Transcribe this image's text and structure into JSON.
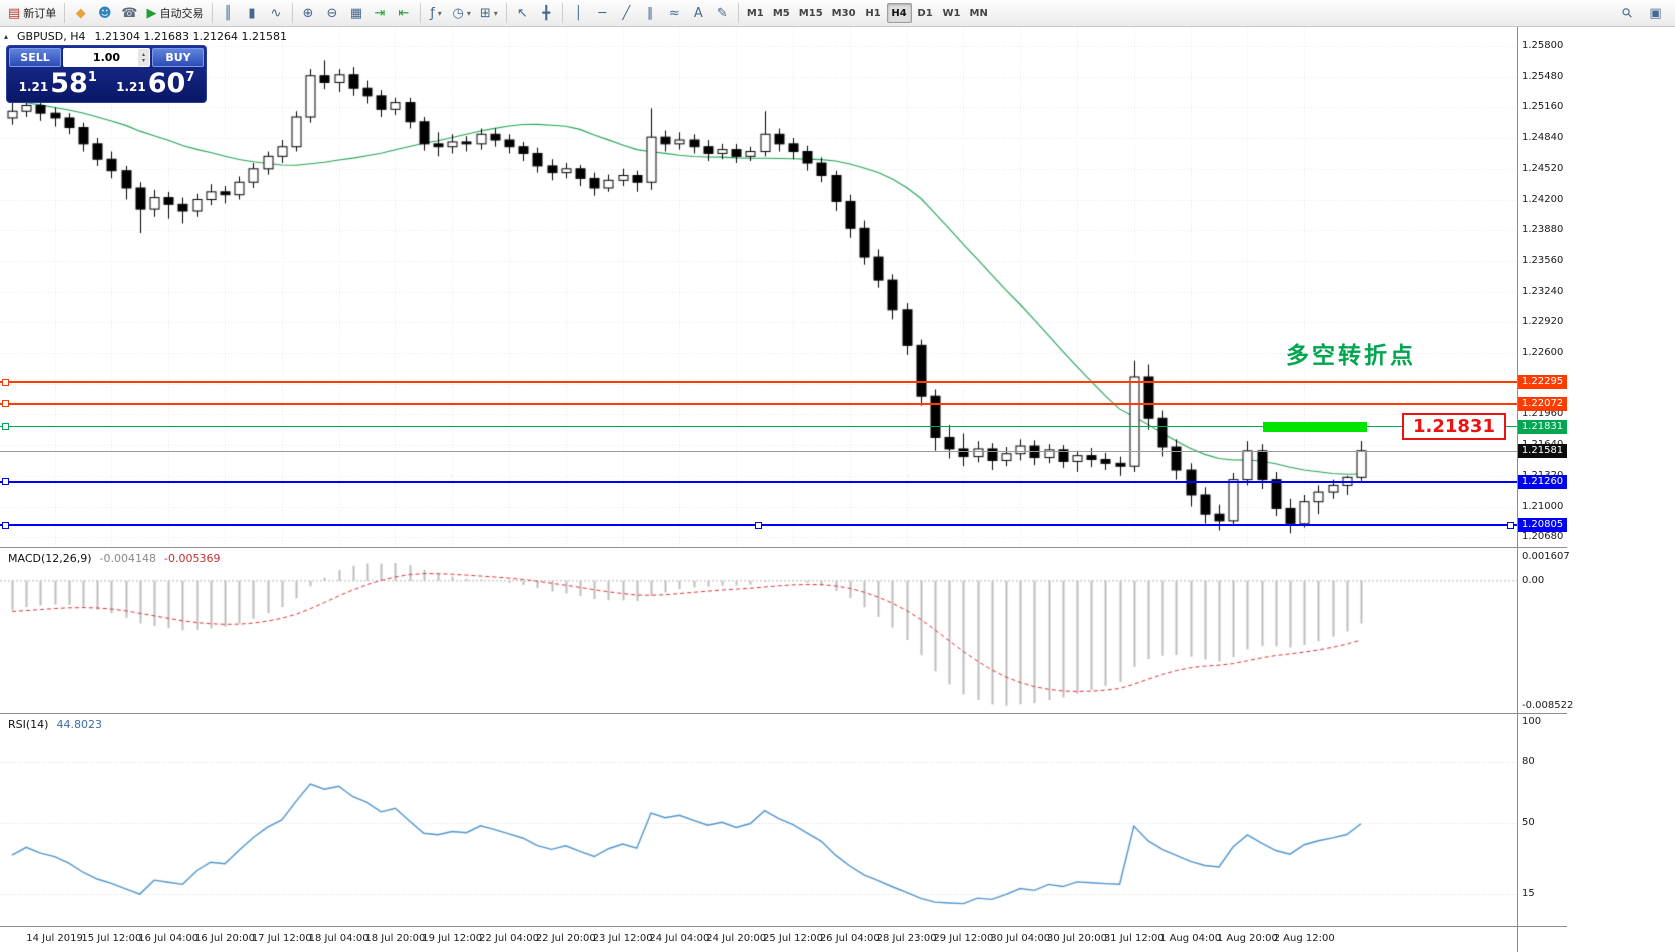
{
  "toolbar": {
    "groups": [
      {
        "items": [
          {
            "name": "new-order-button",
            "icon_name": "new-order-icon",
            "glyph": "▤",
            "glyph_color": "#b03a2e",
            "label": "新订单"
          }
        ]
      },
      {
        "items": [
          {
            "name": "mql5-market-icon",
            "glyph": "◆",
            "glyph_color": "#e8a33d"
          },
          {
            "name": "community-icon",
            "glyph": "☻",
            "glyph_color": "#2e86c1"
          },
          {
            "name": "support-icon",
            "glyph": "☎",
            "glyph_color": "#5d6d7e"
          },
          {
            "name": "auto-trading-button",
            "icon_name": "auto-trading-play-icon",
            "glyph": "▶",
            "glyph_color": "#1e9e33",
            "label": "自动交易"
          }
        ]
      },
      {
        "items": [
          {
            "name": "chart-bars-icon",
            "glyph": "║"
          },
          {
            "name": "chart-candles-icon",
            "glyph": "▮"
          },
          {
            "name": "chart-line-icon",
            "glyph": "∿"
          }
        ]
      },
      {
        "items": [
          {
            "name": "zoom-in-icon",
            "glyph": "⊕"
          },
          {
            "name": "zoom-out-icon",
            "glyph": "⊖"
          },
          {
            "name": "tile-windows-icon",
            "glyph": "▦"
          },
          {
            "name": "auto-scroll-icon",
            "glyph": "⇥",
            "glyph_color": "#1e9e33"
          },
          {
            "name": "chart-shift-icon",
            "glyph": "⇤",
            "glyph_color": "#1e9e33"
          }
        ]
      },
      {
        "items": [
          {
            "name": "indicators-icon",
            "glyph": "ƒ",
            "dropdown": true
          },
          {
            "name": "periods-icon",
            "glyph": "◷",
            "dropdown": true
          },
          {
            "name": "templates-icon",
            "glyph": "⊞",
            "dropdown": true
          }
        ]
      },
      {
        "items": [
          {
            "name": "cursor-icon",
            "glyph": "↖"
          },
          {
            "name": "crosshair-icon",
            "glyph": "╋"
          }
        ]
      },
      {
        "items": [
          {
            "name": "vline-tool-icon",
            "glyph": "│"
          },
          {
            "name": "hline-tool-icon",
            "glyph": "─"
          },
          {
            "name": "trendline-tool-icon",
            "glyph": "╱"
          },
          {
            "name": "channel-tool-icon",
            "glyph": "∥"
          },
          {
            "name": "cycle-tool-icon",
            "glyph": "≈"
          },
          {
            "name": "text-tool-icon",
            "glyph": "A"
          },
          {
            "name": "draw-tool-icon",
            "glyph": "✎"
          }
        ]
      }
    ],
    "timeframes": [
      "M1",
      "M5",
      "M15",
      "M30",
      "H1",
      "H4",
      "D1",
      "W1",
      "MN"
    ],
    "active_timeframe": "H4",
    "right_items": [
      {
        "name": "search-icon",
        "glyph": "⚲"
      },
      {
        "name": "layout-icon",
        "glyph": "▣"
      }
    ]
  },
  "chart": {
    "symbol": "GBPUSD, H4",
    "ohlc": "1.21304 1.21683 1.21264 1.21581",
    "collapse_arrow": "▴",
    "trade_panel": {
      "sell_label": "SELL",
      "buy_label": "BUY",
      "volume": "1.00",
      "sell_price": {
        "prefix": "1.21",
        "big": "58",
        "sup": "1"
      },
      "buy_price": {
        "prefix": "1.21",
        "big": "60",
        "sup": "7"
      }
    },
    "annotation": {
      "text": "多空转折点",
      "color": "#00a64f"
    },
    "price_flag": {
      "text": "1.21831",
      "color": "#ee1111"
    },
    "current_price": {
      "text": "1.21581",
      "value": 1.21581
    }
  },
  "price_axis": {
    "ticks": [
      "1.25800",
      "1.25480",
      "1.25160",
      "1.24840",
      "1.24520",
      "1.24200",
      "1.23880",
      "1.23560",
      "1.23240",
      "1.22920",
      "1.22600",
      "1.22280",
      "1.21960",
      "1.21640",
      "1.21320",
      "1.21000",
      "1.20680"
    ]
  },
  "time_axis": {
    "labels": [
      "14 Jul 2019",
      "15 Jul 12:00",
      "16 Jul 04:00",
      "16 Jul 20:00",
      "17 Jul 12:00",
      "18 Jul 04:00",
      "18 Jul 20:00",
      "19 Jul 12:00",
      "22 Jul 04:00",
      "22 Jul 20:00",
      "23 Jul 12:00",
      "24 Jul 04:00",
      "24 Jul 20:00",
      "25 Jul 12:00",
      "26 Jul 04:00",
      "28 Jul 23:00",
      "29 Jul 12:00",
      "30 Jul 04:00",
      "30 Jul 20:00",
      "31 Jul 12:00",
      "1 Aug 04:00",
      "1 Aug 20:00",
      "2 Aug 12:00"
    ]
  },
  "macd_panel": {
    "name": "MACD(12,26,9)",
    "value": "-0.004148",
    "signal_value": "-0.005369",
    "axis": {
      "top": "0.001607",
      "zero": "0.00",
      "bottom": "-0.008522"
    }
  },
  "rsi_panel": {
    "name": "RSI(14)",
    "value": "44.8023",
    "level_labels": [
      "100",
      "80",
      "50",
      "15"
    ],
    "level_values": [
      100,
      80,
      50,
      15
    ]
  },
  "chart_data": {
    "type": "candlestick",
    "symbol": "GBPUSD",
    "timeframe": "H4",
    "ohlc_display": {
      "open": "1.21304",
      "high": "1.21683",
      "low": "1.21264",
      "close": "1.21581"
    },
    "ylim": [
      1.2056,
      1.26
    ],
    "warmup_closes": [
      1.26,
      1.2592,
      1.2585,
      1.259,
      1.2578,
      1.257,
      1.2575,
      1.2562,
      1.2555,
      1.256,
      1.2548,
      1.254,
      1.2545,
      1.2532,
      1.2525,
      1.253,
      1.2518,
      1.251,
      1.2515,
      1.2502,
      1.2495,
      1.25,
      1.2508,
      1.2498,
      1.2502,
      1.2505
    ],
    "candles_ohlc": [
      [
        1.2505,
        1.2522,
        1.2498,
        1.2512
      ],
      [
        1.2512,
        1.2525,
        1.2506,
        1.2518
      ],
      [
        1.2518,
        1.2524,
        1.2502,
        1.251
      ],
      [
        1.251,
        1.2516,
        1.2496,
        1.2505
      ],
      [
        1.2505,
        1.251,
        1.2488,
        1.2495
      ],
      [
        1.2495,
        1.25,
        1.247,
        1.2478
      ],
      [
        1.2478,
        1.2484,
        1.2455,
        1.2462
      ],
      [
        1.2462,
        1.247,
        1.2442,
        1.245
      ],
      [
        1.245,
        1.2455,
        1.242,
        1.2432
      ],
      [
        1.2432,
        1.2438,
        1.2385,
        1.241
      ],
      [
        1.241,
        1.243,
        1.2402,
        1.2422
      ],
      [
        1.2422,
        1.2428,
        1.24,
        1.2415
      ],
      [
        1.2415,
        1.2422,
        1.2395,
        1.2408
      ],
      [
        1.2408,
        1.2426,
        1.2402,
        1.242
      ],
      [
        1.242,
        1.2436,
        1.2414,
        1.2428
      ],
      [
        1.2428,
        1.2434,
        1.2416,
        1.2425
      ],
      [
        1.2425,
        1.2444,
        1.242,
        1.2438
      ],
      [
        1.2438,
        1.2458,
        1.2432,
        1.2452
      ],
      [
        1.2452,
        1.247,
        1.2446,
        1.2465
      ],
      [
        1.2465,
        1.2482,
        1.2458,
        1.2475
      ],
      [
        1.2475,
        1.2512,
        1.247,
        1.2506
      ],
      [
        1.2506,
        1.2556,
        1.25,
        1.2549
      ],
      [
        1.2549,
        1.2565,
        1.2535,
        1.2542
      ],
      [
        1.2542,
        1.2556,
        1.2532,
        1.255
      ],
      [
        1.255,
        1.2558,
        1.2528,
        1.2536
      ],
      [
        1.2536,
        1.2544,
        1.252,
        1.2528
      ],
      [
        1.2528,
        1.2534,
        1.2506,
        1.2514
      ],
      [
        1.2514,
        1.2526,
        1.2508,
        1.2521
      ],
      [
        1.2521,
        1.2526,
        1.2494,
        1.2501
      ],
      [
        1.2501,
        1.2506,
        1.2471,
        1.2478
      ],
      [
        1.2478,
        1.249,
        1.2465,
        1.2475
      ],
      [
        1.2475,
        1.2488,
        1.2468,
        1.248
      ],
      [
        1.248,
        1.2486,
        1.247,
        1.2478
      ],
      [
        1.2478,
        1.2494,
        1.2472,
        1.2488
      ],
      [
        1.2488,
        1.2494,
        1.2475,
        1.2482
      ],
      [
        1.2482,
        1.2488,
        1.2468,
        1.2475
      ],
      [
        1.2475,
        1.248,
        1.246,
        1.2468
      ],
      [
        1.2468,
        1.2474,
        1.2448,
        1.2455
      ],
      [
        1.2455,
        1.2462,
        1.244,
        1.2448
      ],
      [
        1.2448,
        1.2458,
        1.2442,
        1.2452
      ],
      [
        1.2452,
        1.2456,
        1.2434,
        1.2442
      ],
      [
        1.2442,
        1.2448,
        1.2424,
        1.2432
      ],
      [
        1.2432,
        1.2446,
        1.2428,
        1.244
      ],
      [
        1.244,
        1.2452,
        1.2434,
        1.2445
      ],
      [
        1.2445,
        1.245,
        1.2428,
        1.2438
      ],
      [
        1.2438,
        1.2515,
        1.243,
        1.2485
      ],
      [
        1.2485,
        1.2492,
        1.247,
        1.2478
      ],
      [
        1.2478,
        1.249,
        1.2472,
        1.2482
      ],
      [
        1.2482,
        1.2488,
        1.2468,
        1.2475
      ],
      [
        1.2475,
        1.2482,
        1.246,
        1.2468
      ],
      [
        1.2468,
        1.2478,
        1.2462,
        1.2472
      ],
      [
        1.2472,
        1.2478,
        1.2458,
        1.2465
      ],
      [
        1.2465,
        1.2475,
        1.246,
        1.247
      ],
      [
        1.247,
        1.2512,
        1.2465,
        1.2488
      ],
      [
        1.2488,
        1.2494,
        1.247,
        1.2478
      ],
      [
        1.2478,
        1.2484,
        1.2462,
        1.247
      ],
      [
        1.247,
        1.2476,
        1.245,
        1.2458
      ],
      [
        1.2458,
        1.2464,
        1.2438,
        1.2445
      ],
      [
        1.2445,
        1.245,
        1.2408,
        1.2418
      ],
      [
        1.2418,
        1.2425,
        1.238,
        1.239
      ],
      [
        1.239,
        1.2398,
        1.2352,
        1.236
      ],
      [
        1.236,
        1.2368,
        1.2328,
        1.2336
      ],
      [
        1.2336,
        1.2342,
        1.2295,
        1.2305
      ],
      [
        1.2305,
        1.2312,
        1.2258,
        1.2268
      ],
      [
        1.2268,
        1.2274,
        1.2205,
        1.2215
      ],
      [
        1.2215,
        1.2222,
        1.2158,
        1.2172
      ],
      [
        1.2172,
        1.2185,
        1.215,
        1.216
      ],
      [
        1.216,
        1.2176,
        1.2142,
        1.2152
      ],
      [
        1.2152,
        1.2168,
        1.2146,
        1.216
      ],
      [
        1.216,
        1.2166,
        1.2138,
        1.2148
      ],
      [
        1.2148,
        1.2162,
        1.2142,
        1.2155
      ],
      [
        1.2155,
        1.217,
        1.2148,
        1.2163
      ],
      [
        1.2163,
        1.2169,
        1.2143,
        1.2151
      ],
      [
        1.2151,
        1.2165,
        1.2145,
        1.2159
      ],
      [
        1.2159,
        1.2164,
        1.214,
        1.2147
      ],
      [
        1.2147,
        1.2158,
        1.2136,
        1.2153
      ],
      [
        1.2153,
        1.2161,
        1.2141,
        1.2149
      ],
      [
        1.2149,
        1.2156,
        1.2138,
        1.2145
      ],
      [
        1.2145,
        1.2152,
        1.2132,
        1.2142
      ],
      [
        1.2142,
        1.2252,
        1.2136,
        1.2235
      ],
      [
        1.2235,
        1.2248,
        1.218,
        1.2192
      ],
      [
        1.2192,
        1.22,
        1.2152,
        1.2162
      ],
      [
        1.2162,
        1.217,
        1.2128,
        1.2138
      ],
      [
        1.2138,
        1.2145,
        1.21,
        1.2112
      ],
      [
        1.2112,
        1.212,
        1.2082,
        1.2092
      ],
      [
        1.2092,
        1.2102,
        1.2075,
        1.2085
      ],
      [
        1.2085,
        1.2135,
        1.208,
        1.2128
      ],
      [
        1.2128,
        1.2168,
        1.2122,
        1.2158
      ],
      [
        1.2158,
        1.2165,
        1.2118,
        1.2128
      ],
      [
        1.2128,
        1.2136,
        1.209,
        1.2098
      ],
      [
        1.2098,
        1.2108,
        1.2072,
        1.2082
      ],
      [
        1.2082,
        1.2112,
        1.2078,
        1.2105
      ],
      [
        1.2105,
        1.2122,
        1.2092,
        1.2115
      ],
      [
        1.2115,
        1.2128,
        1.2108,
        1.2122
      ],
      [
        1.2122,
        1.2132,
        1.2112,
        1.21304
      ],
      [
        1.21304,
        1.21683,
        1.21264,
        1.21581
      ]
    ],
    "hlines": [
      {
        "price": 1.22295,
        "label": "1.22295",
        "color": "#ff3c00",
        "thickness": 2,
        "handles": [
          "left"
        ]
      },
      {
        "price": 1.22072,
        "label": "1.22072",
        "color": "#ff3c00",
        "thickness": 2,
        "handles": [
          "left"
        ]
      },
      {
        "price": 1.21831,
        "label": "1.21831",
        "color": "#00a651",
        "thickness": 1,
        "handles": [
          "left"
        ]
      },
      {
        "price": 1.2126,
        "label": "1.21260",
        "color": "#0000f0",
        "thickness": 2,
        "handles": [
          "left"
        ]
      },
      {
        "price": 1.20805,
        "label": "1.20805",
        "color": "#0000f0",
        "thickness": 2,
        "handles": [
          "left",
          "center",
          "right"
        ]
      }
    ],
    "highlight_bar": {
      "price": 1.21831,
      "color": "#00e400"
    },
    "indicators": {
      "bollinger": {
        "period": 20,
        "deviation": 2,
        "color": "#22a355"
      },
      "macd": {
        "fast": 12,
        "slow": 26,
        "signal": 9,
        "histogram_color": "#bdbdbd",
        "signal_color": "#e03131",
        "range": [
          0.001607,
          -0.008522
        ]
      },
      "rsi": {
        "period": 14,
        "color": "#4f94cd",
        "levels": [
          80,
          50,
          15
        ]
      }
    }
  }
}
